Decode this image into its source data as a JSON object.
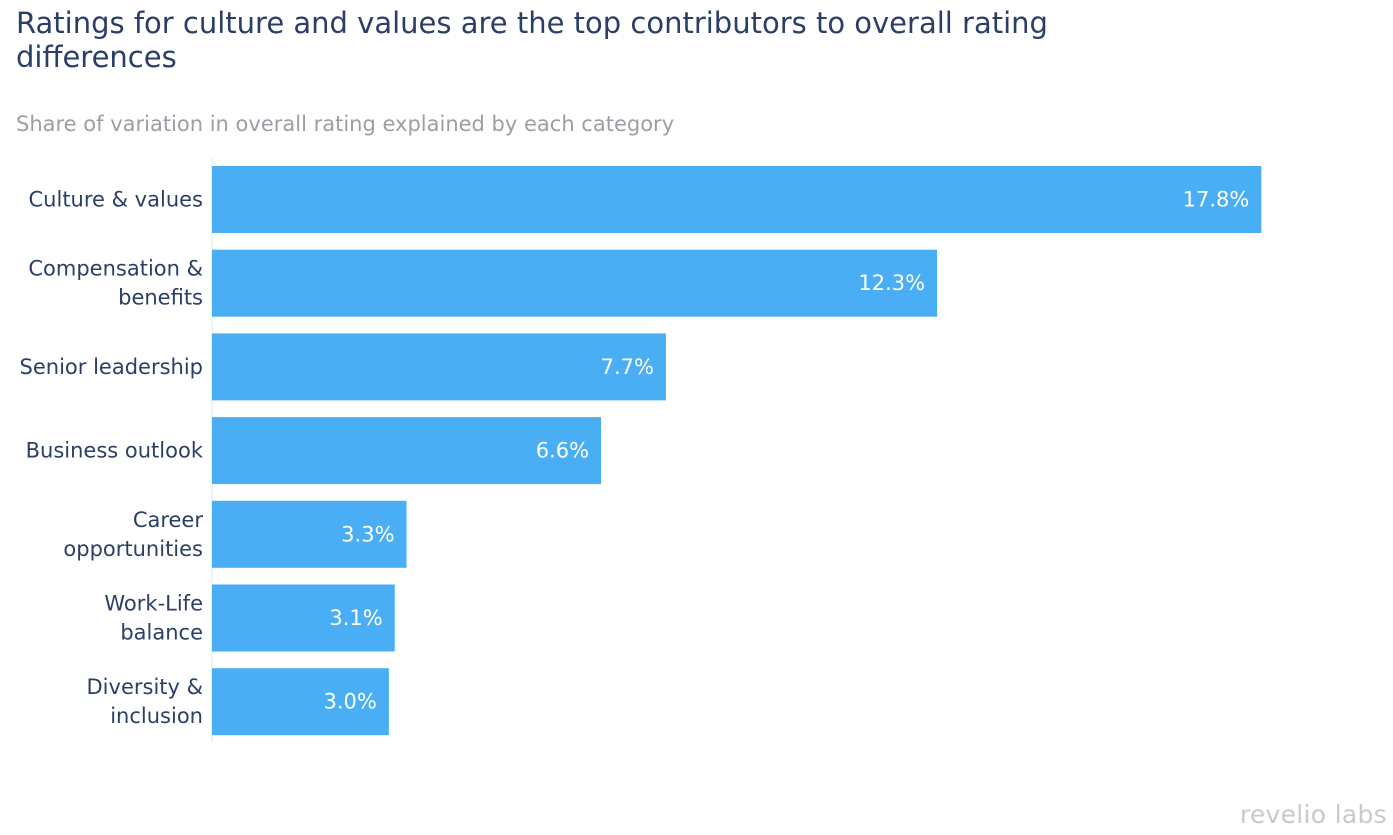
{
  "chart_data": {
    "type": "bar",
    "orientation": "horizontal",
    "title": "Ratings for culture and values are the top contributors to overall rating differences",
    "subtitle": "Share of variation in overall rating explained by each category",
    "categories": [
      [
        "Culture & values"
      ],
      [
        "Compensation &",
        "benefits"
      ],
      [
        "Senior leadership"
      ],
      [
        "Business outlook"
      ],
      [
        "Career",
        "opportunities"
      ],
      [
        "Work-Life",
        "balance"
      ],
      [
        "Diversity &",
        "inclusion"
      ]
    ],
    "values": [
      17.8,
      12.3,
      7.7,
      6.6,
      3.3,
      3.1,
      3.0
    ],
    "value_labels": [
      "17.8%",
      "12.3%",
      "7.7%",
      "6.6%",
      "3.3%",
      "3.1%",
      "3.0%"
    ],
    "xlim": [
      0,
      18.15
    ],
    "bar_color": "#4aaef5",
    "label_color": "#ffffff",
    "grid": false,
    "xlabel": "",
    "ylabel": ""
  },
  "brand": "revelio labs",
  "colors": {
    "title": "#2b3f66",
    "subtitle": "#9a9fa6",
    "category_text": "#2b3f66",
    "axis_line": "#e6e6e6"
  }
}
